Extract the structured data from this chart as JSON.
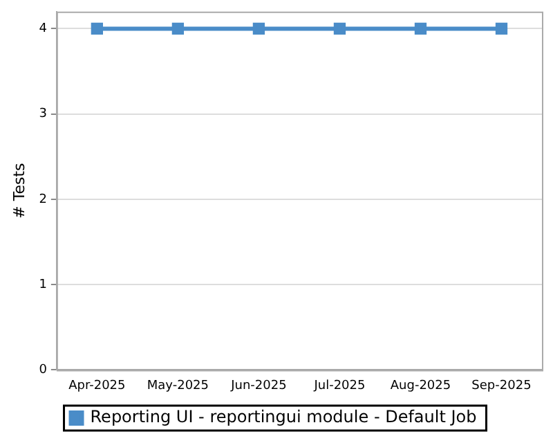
{
  "chart_data": {
    "type": "line",
    "ylabel": "# Tests",
    "categories": [
      "Apr-2025",
      "May-2025",
      "Jun-2025",
      "Jul-2025",
      "Aug-2025",
      "Sep-2025"
    ],
    "series": [
      {
        "name": "Reporting UI - reportingui module - Default Job",
        "color": "#4a8cc8",
        "values": [
          4,
          4,
          4,
          4,
          4,
          4
        ]
      }
    ],
    "ylim": [
      0,
      4.2
    ],
    "yticks": [
      0,
      1,
      2,
      3,
      4
    ],
    "grid": "y",
    "legend": "bottom",
    "marker": "square",
    "line_style": "solid"
  }
}
